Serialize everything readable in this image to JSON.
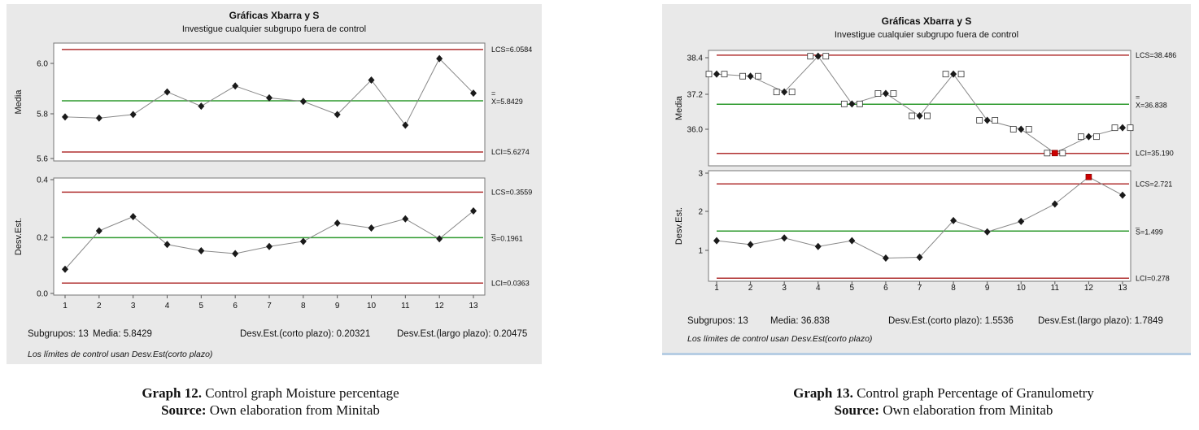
{
  "charts": [
    {
      "title": "Gráficas Xbarra y S",
      "subtitle": "Investigue cualquier subgrupo fuera de control",
      "x_ticks": [
        "1",
        "2",
        "3",
        "4",
        "5",
        "6",
        "7",
        "8",
        "9",
        "10",
        "11",
        "12",
        "13"
      ],
      "mean_chart": {
        "ylabel": "Media",
        "ylim": [
          5.6,
          6.1
        ],
        "y_ticks": [
          "5.6",
          "5.8",
          "6.0"
        ],
        "limit_labels": {
          "ucl": "LCS=6.0584",
          "center_prefix": "=",
          "center": "X=5.8429",
          "lcl": "LCI=5.6274"
        },
        "ucl": 6.0584,
        "center": 5.8429,
        "lcl": 5.6274,
        "values": [
          5.775,
          5.77,
          5.785,
          5.88,
          5.82,
          5.905,
          5.855,
          5.84,
          5.785,
          5.93,
          5.74,
          6.02,
          5.875
        ]
      },
      "s_chart": {
        "ylabel": "Desv.Est.",
        "ylim": [
          0.0,
          0.4
        ],
        "y_ticks": [
          "0.0",
          "0.2",
          "0.4"
        ],
        "limit_labels": {
          "ucl": "LCS=0.3559",
          "center_prefix": "_",
          "center": "S=0.1961",
          "lcl": "LCI=0.0363"
        },
        "ucl": 0.3559,
        "center": 0.1961,
        "lcl": 0.0363,
        "values": [
          0.085,
          0.22,
          0.27,
          0.172,
          0.15,
          0.14,
          0.165,
          0.183,
          0.247,
          0.23,
          0.262,
          0.192,
          0.29
        ]
      },
      "stats": {
        "subgroups": "Subgrupos: 13",
        "mean": "Media: 5.8429",
        "sd_short": "Desv.Est.(corto plazo): 0.20321",
        "sd_long": "Desv.Est.(largo plazo): 0.20475"
      },
      "note": "Los límites de control usan Desv.Est(corto plazo)",
      "caption": {
        "label": "Graph 12.",
        "text": " Control graph Moisture percentage",
        "source_label": "Source:",
        "source_text": " Own elaboration from Minitab"
      }
    },
    {
      "title": "Gráficas Xbarra y S",
      "subtitle": "Investigue cualquier subgrupo fuera de control",
      "x_ticks": [
        "1",
        "2",
        "3",
        "4",
        "5",
        "6",
        "7",
        "8",
        "9",
        "10",
        "11",
        "12",
        "13"
      ],
      "mean_chart": {
        "ylabel": "Media",
        "ylim": [
          34.9,
          38.6
        ],
        "y_ticks": [
          "36.0",
          "37.2",
          "38.4"
        ],
        "limit_labels": {
          "ucl": "LCS=38.486",
          "center_prefix": "=",
          "center": "X=36.838",
          "lcl": "LCI=35.190"
        },
        "ucl": 38.486,
        "center": 36.838,
        "lcl": 35.19,
        "values": [
          37.85,
          37.78,
          37.25,
          38.45,
          36.85,
          37.2,
          36.45,
          37.85,
          36.3,
          36.0,
          35.2,
          35.75,
          36.05
        ],
        "out_of_control": [
          11
        ],
        "square_markers": true
      },
      "s_chart": {
        "ylabel": "Desv.Est.",
        "ylim": [
          0.0,
          3.0
        ],
        "y_ticks": [
          "1",
          "2",
          "3"
        ],
        "limit_labels": {
          "ucl": "LCS=2.721",
          "center_prefix": "_",
          "center": "S=1.499",
          "lcl": "LCI=0.278"
        },
        "ucl": 2.721,
        "center": 1.499,
        "lcl": 0.278,
        "values": [
          1.25,
          1.15,
          1.32,
          1.1,
          1.25,
          0.8,
          0.82,
          1.77,
          1.48,
          1.75,
          2.2,
          2.9,
          2.43
        ],
        "out_of_control": [
          12
        ]
      },
      "stats": {
        "subgroups": "Subgrupos: 13",
        "mean": "Media: 36.838",
        "sd_short": "Desv.Est.(corto plazo): 1.5536",
        "sd_long": "Desv.Est.(largo plazo): 1.7849"
      },
      "note": "Los límites de control usan Desv.Est(corto plazo)",
      "caption": {
        "label": "Graph 13.",
        "text": " Control graph Percentage of Granulometry",
        "source_label": "Source:",
        "source_text": " Own elaboration from Minitab"
      }
    }
  ],
  "colors": {
    "limit": "#b03030",
    "center": "#2e9a2e",
    "line": "#888888",
    "marker": "#1a1a1a",
    "alarm": "#cc0000",
    "panel": "#e9e9e9"
  }
}
